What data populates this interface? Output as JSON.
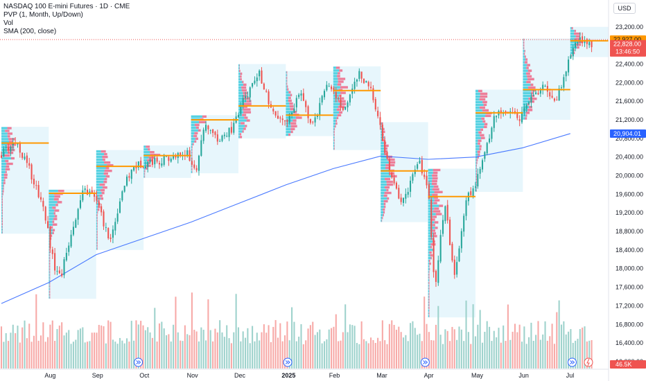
{
  "legend": {
    "title": "NASDAQ 100 E-mini Futures · 1D · CME",
    "indicator_1": "PVP (1, Month, Up/Down)",
    "indicator_2": "Vol",
    "indicator_3": "SMA (200, close)"
  },
  "currency": "USD",
  "colors": {
    "up": "#26a69a",
    "down": "#ef5350",
    "up_volume": "#9ed2cc",
    "down_volume": "#f7a9a7",
    "sma": "#2962ff",
    "poc": "#ff9800",
    "profile_up": "#26c6da",
    "profile_down": "#ef5f7f",
    "profile_bg": "#e3f4fb"
  },
  "price_badges": {
    "last": "22,927.00",
    "close": "22,828.00",
    "countdown": "13:46:50",
    "sma": "20,904.01",
    "volume": "46.5K"
  },
  "chart_data": {
    "type": "candlestick",
    "title": "NASDAQ 100 E-mini Futures · 1D · CME",
    "y_ticks": [
      16000,
      16400,
      16800,
      17200,
      17600,
      18000,
      18400,
      18800,
      19200,
      19600,
      20000,
      20400,
      20800,
      21200,
      21600,
      22000,
      22400,
      23200
    ],
    "y_tick_labels": [
      "16,000.00",
      "16,400.00",
      "16,800.00",
      "17,200.00",
      "17,600.00",
      "18,000.00",
      "18,400.00",
      "18,800.00",
      "19,200.00",
      "19,600.00",
      "20,000.00",
      "20,400.00",
      "20,800.00",
      "21,200.00",
      "21,600.00",
      "22,000.00",
      "22,400.00",
      "23,200.00"
    ],
    "ylim": [
      15850,
      23450
    ],
    "x_labels": [
      {
        "label": "Aug",
        "month_index": 1,
        "bold": false
      },
      {
        "label": "Sep",
        "month_index": 2,
        "bold": false
      },
      {
        "label": "Oct",
        "month_index": 3,
        "bold": false
      },
      {
        "label": "Nov",
        "month_index": 4,
        "bold": false
      },
      {
        "label": "Dec",
        "month_index": 5,
        "bold": false
      },
      {
        "label": "2025",
        "month_index": 6,
        "bold": true
      },
      {
        "label": "Feb",
        "month_index": 7,
        "bold": false
      },
      {
        "label": "Mar",
        "month_index": 8,
        "bold": false
      },
      {
        "label": "Apr",
        "month_index": 9,
        "bold": false
      },
      {
        "label": "May",
        "month_index": 10,
        "bold": false
      },
      {
        "label": "Jun",
        "month_index": 11,
        "bold": false
      },
      {
        "label": "Jul",
        "month_index": 12,
        "bold": false
      }
    ],
    "monthly_profiles": [
      {
        "month": "Jul",
        "high": 21050,
        "low": 18750,
        "poc": 20700
      },
      {
        "month": "Aug",
        "high": 19700,
        "low": 17350,
        "poc": 19620
      },
      {
        "month": "Sep",
        "high": 20550,
        "low": 18400,
        "poc": 20200
      },
      {
        "month": "Oct",
        "high": 20650,
        "low": 19950,
        "poc": 20430
      },
      {
        "month": "Nov",
        "high": 21300,
        "low": 20050,
        "poc": 21200
      },
      {
        "month": "Dec",
        "high": 22400,
        "low": 20800,
        "poc": 21500
      },
      {
        "month": "Jan",
        "high": 22250,
        "low": 20850,
        "poc": 21300
      },
      {
        "month": "Feb",
        "high": 22350,
        "low": 20550,
        "poc": 21830
      },
      {
        "month": "Mar",
        "high": 21150,
        "low": 19000,
        "poc": 20100
      },
      {
        "month": "Apr",
        "high": 20150,
        "low": 16950,
        "poc": 19550
      },
      {
        "month": "May",
        "high": 21850,
        "low": 19650,
        "poc": 21350
      },
      {
        "month": "Jun",
        "high": 22950,
        "low": 21200,
        "poc": 21850
      },
      {
        "month": "Jul",
        "high": 23200,
        "low": 22550,
        "poc": 22900
      }
    ],
    "sma_200": [
      {
        "month_index": 0,
        "value": 17250
      },
      {
        "month_index": 1,
        "value": 17700
      },
      {
        "month_index": 2,
        "value": 18300
      },
      {
        "month_index": 3,
        "value": 18650
      },
      {
        "month_index": 4,
        "value": 19000
      },
      {
        "month_index": 5,
        "value": 19400
      },
      {
        "month_index": 6,
        "value": 19800
      },
      {
        "month_index": 7,
        "value": 20150
      },
      {
        "month_index": 8,
        "value": 20420
      },
      {
        "month_index": 9,
        "value": 20350
      },
      {
        "month_index": 10,
        "value": 20400
      },
      {
        "month_index": 11,
        "value": 20600
      },
      {
        "month_index": 12,
        "value": 20904
      }
    ],
    "price_path": [
      {
        "month_index": 0.0,
        "value": 20450
      },
      {
        "month_index": 0.3,
        "value": 20750
      },
      {
        "month_index": 0.6,
        "value": 20100
      },
      {
        "month_index": 0.9,
        "value": 19300
      },
      {
        "month_index": 1.1,
        "value": 18100
      },
      {
        "month_index": 1.25,
        "value": 17800
      },
      {
        "month_index": 1.5,
        "value": 18900
      },
      {
        "month_index": 1.75,
        "value": 19700
      },
      {
        "month_index": 2.0,
        "value": 19500
      },
      {
        "month_index": 2.15,
        "value": 19000
      },
      {
        "month_index": 2.3,
        "value": 18600
      },
      {
        "month_index": 2.55,
        "value": 19700
      },
      {
        "month_index": 2.8,
        "value": 20200
      },
      {
        "month_index": 3.1,
        "value": 20300
      },
      {
        "month_index": 3.5,
        "value": 20350
      },
      {
        "month_index": 3.9,
        "value": 20500
      },
      {
        "month_index": 4.1,
        "value": 20100
      },
      {
        "month_index": 4.3,
        "value": 21100
      },
      {
        "month_index": 4.6,
        "value": 20750
      },
      {
        "month_index": 4.9,
        "value": 21050
      },
      {
        "month_index": 5.1,
        "value": 21600
      },
      {
        "month_index": 5.45,
        "value": 22200
      },
      {
        "month_index": 5.7,
        "value": 21350
      },
      {
        "month_index": 6.0,
        "value": 21100
      },
      {
        "month_index": 6.3,
        "value": 21800
      },
      {
        "month_index": 6.55,
        "value": 21050
      },
      {
        "month_index": 6.9,
        "value": 22000
      },
      {
        "month_index": 7.2,
        "value": 21400
      },
      {
        "month_index": 7.55,
        "value": 22200
      },
      {
        "month_index": 7.85,
        "value": 21700
      },
      {
        "month_index": 8.0,
        "value": 20950
      },
      {
        "month_index": 8.2,
        "value": 20000
      },
      {
        "month_index": 8.45,
        "value": 19400
      },
      {
        "month_index": 8.8,
        "value": 20300
      },
      {
        "month_index": 9.0,
        "value": 19800
      },
      {
        "month_index": 9.15,
        "value": 17500
      },
      {
        "month_index": 9.35,
        "value": 19500
      },
      {
        "month_index": 9.55,
        "value": 17800
      },
      {
        "month_index": 9.8,
        "value": 19500
      },
      {
        "month_index": 10.0,
        "value": 19800
      },
      {
        "month_index": 10.15,
        "value": 20300
      },
      {
        "month_index": 10.4,
        "value": 21300
      },
      {
        "month_index": 10.7,
        "value": 21400
      },
      {
        "month_index": 10.9,
        "value": 21200
      },
      {
        "month_index": 11.15,
        "value": 21700
      },
      {
        "month_index": 11.45,
        "value": 21900
      },
      {
        "month_index": 11.7,
        "value": 21600
      },
      {
        "month_index": 11.95,
        "value": 22400
      },
      {
        "month_index": 12.1,
        "value": 22850
      },
      {
        "month_index": 12.3,
        "value": 22950
      },
      {
        "month_index": 12.45,
        "value": 22828
      }
    ],
    "volume_axis_max": 1000,
    "last_price": 22927,
    "close_price": 22828,
    "sma_value": 20904.01
  }
}
